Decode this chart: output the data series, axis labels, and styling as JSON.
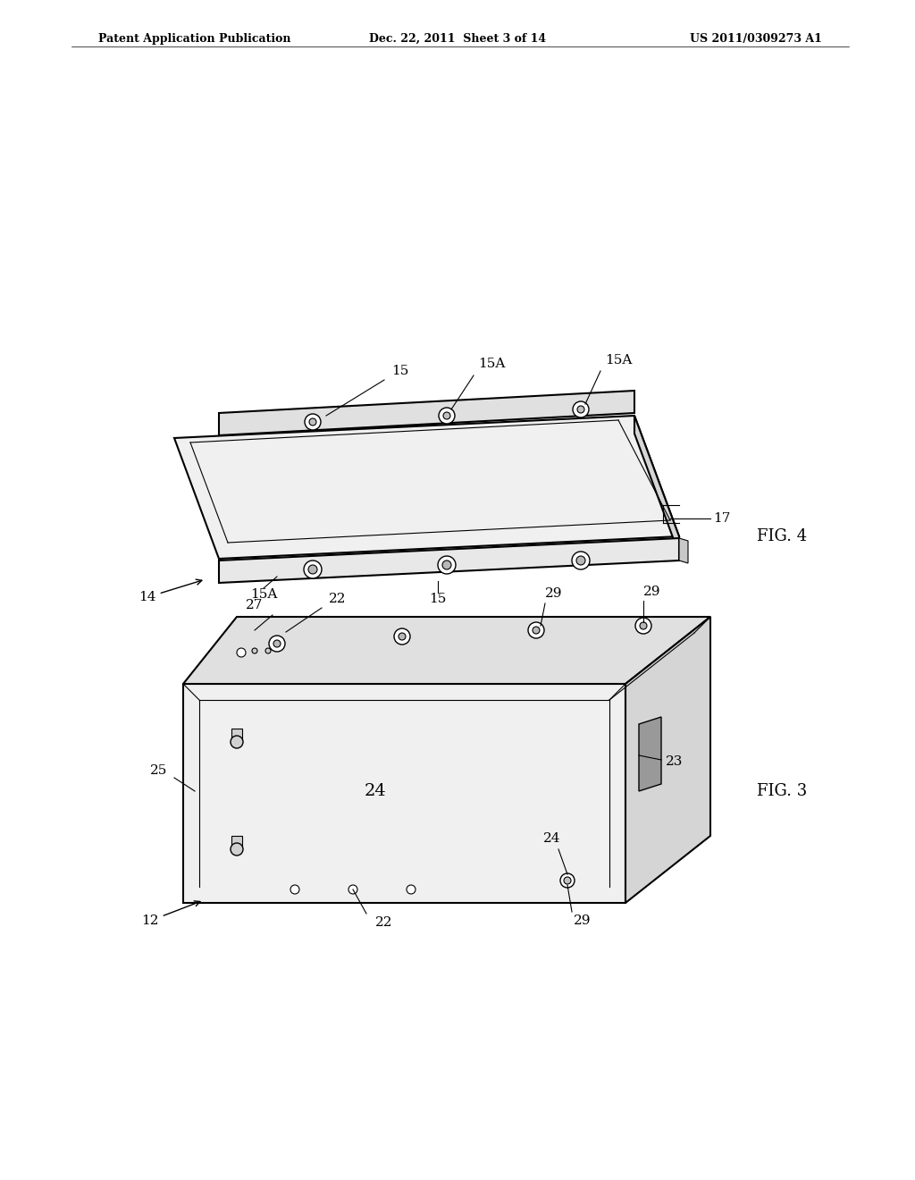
{
  "bg_color": "#ffffff",
  "header_left": "Patent Application Publication",
  "header_center": "Dec. 22, 2011  Sheet 3 of 14",
  "header_right": "US 2011/0309273 A1",
  "fig4_label": "FIG. 4",
  "fig3_label": "FIG. 3",
  "line_color": "#000000",
  "line_width": 1.5,
  "thin_line": 0.8
}
